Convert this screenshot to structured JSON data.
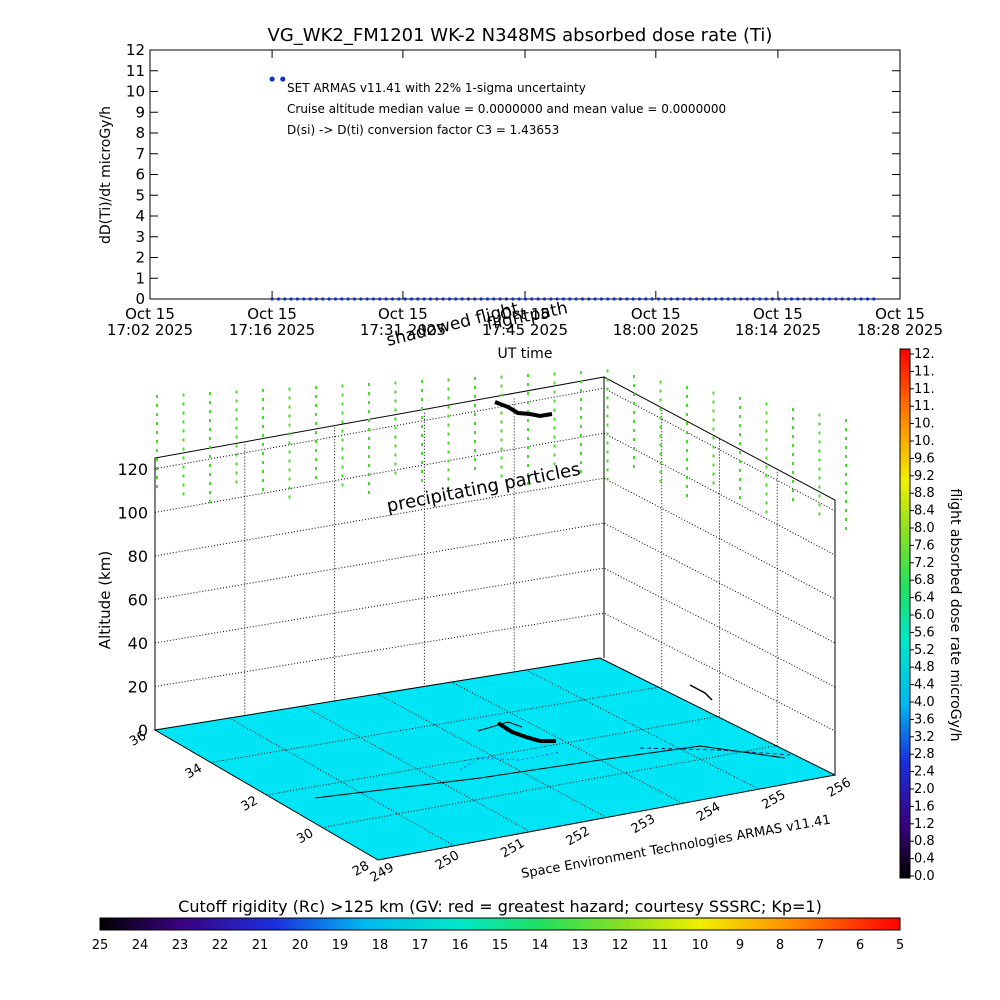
{
  "title": "VG_WK2_FM1201   WK-2 N348MS absorbed dose rate (Ti)",
  "colors": {
    "dose_points": "#1030d0",
    "ground": "#00e5f5",
    "track": "#000000",
    "curtain": "#44dd22"
  },
  "chart_data": [
    {
      "type": "scatter",
      "title": "VG_WK2_FM1201   WK-2 N348MS absorbed dose rate (Ti)",
      "ylabel": "dD(Ti)/dt microGy/h",
      "xlabel": "UT time",
      "ylim": [
        0,
        12
      ],
      "yticks": [
        "0",
        "1",
        "2",
        "3",
        "4",
        "5",
        "6",
        "7",
        "8",
        "9",
        "10",
        "11",
        "12"
      ],
      "xticks": [
        {
          "line1": "Oct 15",
          "line2": "17:02 2025"
        },
        {
          "line1": "Oct 15",
          "line2": "17:16 2025"
        },
        {
          "line1": "Oct 15",
          "line2": "17:31 2025"
        },
        {
          "line1": "Oct 15",
          "line2": "17:45 2025"
        },
        {
          "line1": "Oct 15",
          "line2": "18:00 2025"
        },
        {
          "line1": "Oct 15",
          "line2": "18:14 2025"
        },
        {
          "line1": "Oct 15",
          "line2": "18:28 2025"
        }
      ],
      "annotations": [
        "SET ARMAS v11.41 with 22% 1-sigma uncertainty",
        "Cruise altitude median value = 0.0000000 and mean value = 0.0000000",
        "D(si) -> D(ti) conversion factor C3 = 1.43653"
      ],
      "series": [
        {
          "x_start": "17:16",
          "x_end": "18:25",
          "points": 96,
          "y": 0
        },
        {
          "x": [
            "17:16",
            "17:17"
          ],
          "y": [
            10.6,
            10.6
          ]
        }
      ]
    },
    {
      "type": "3d-map",
      "zlabel": "Altitude (km)",
      "zticks": [
        "0",
        "20",
        "40",
        "60",
        "80",
        "100",
        "120"
      ],
      "yticks": [
        "36",
        "34",
        "32",
        "30",
        "28"
      ],
      "xticks": [
        "249",
        "250",
        "251",
        "252",
        "253",
        "254",
        "255",
        "256"
      ],
      "labels": {
        "precipitating": "precipitating particles",
        "shadowed": "shadowed flight",
        "flightpath": "flightpath",
        "credit": "Space Environment Technologies ARMAS v11.41"
      }
    },
    {
      "type": "colorbar",
      "label": "flight absorbed dose rate microGy/h",
      "ticks": [
        "0.0",
        "0.4",
        "0.8",
        "1.2",
        "1.6",
        "2.0",
        "2.4",
        "2.8",
        "3.2",
        "3.6",
        "4.0",
        "4.4",
        "4.8",
        "5.2",
        "5.6",
        "6.0",
        "6.4",
        "6.8",
        "7.2",
        "7.6",
        "8.0",
        "8.4",
        "8.8",
        "9.2",
        "9.6",
        "10.",
        "10.",
        "11.",
        "11.",
        "11.",
        "12."
      ]
    },
    {
      "type": "colorbar",
      "label": "Cutoff rigidity (Rc) >125 km (GV: red = greatest hazard; courtesy SSSRC; Kp=1)",
      "ticks": [
        "25",
        "24",
        "23",
        "22",
        "21",
        "20",
        "19",
        "18",
        "17",
        "16",
        "15",
        "14",
        "13",
        "12",
        "11",
        "10",
        "9",
        "8",
        "7",
        "6",
        "5"
      ]
    }
  ]
}
